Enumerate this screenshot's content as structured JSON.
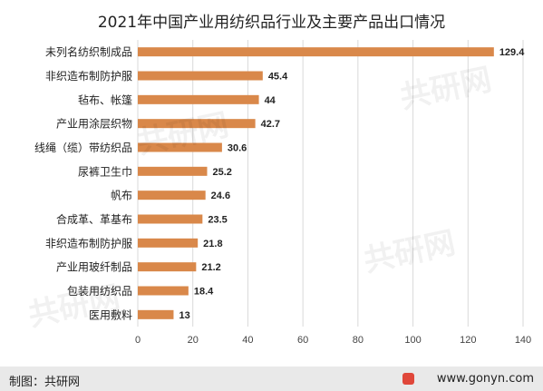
{
  "chart_data": {
    "type": "bar",
    "orientation": "horizontal",
    "title": "2021年中国产业用纺织品行业及主要产品出口情况",
    "categories": [
      "未列名纺织制成品",
      "非织造布制防护服",
      "毡布、帐篷",
      "产业用涂层织物",
      "线绳（缆）带纺织品",
      "尿裤卫生巾",
      "帆布",
      "合成革、革基布",
      "非织造布制防护服",
      "产业用玻纤制品",
      "包装用纺织品",
      "医用敷料"
    ],
    "values": [
      129.4,
      45.4,
      44,
      42.7,
      30.6,
      25.2,
      24.6,
      23.5,
      21.8,
      21.2,
      18.4,
      13
    ],
    "value_labels": [
      "129.4",
      "45.4",
      "44",
      "42.7",
      "30.6",
      "25.2",
      "24.6",
      "23.5",
      "21.8",
      "21.2",
      "18.4",
      "13"
    ],
    "xlim": [
      0,
      140
    ],
    "xticks": [
      0,
      20,
      40,
      60,
      80,
      100,
      120,
      140
    ],
    "grid": "vertical",
    "bar_color": "#d9884a",
    "grid_color": "#d9d9d9"
  },
  "footer": {
    "credit": "制图：共研网",
    "site": "www.gonyn.com",
    "bar_color": "#e9e9e9"
  },
  "watermark": {
    "text": "共研网"
  }
}
